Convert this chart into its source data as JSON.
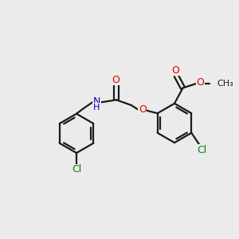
{
  "bg_color": "#ebebeb",
  "bond_color": "#1a1a1a",
  "O_color": "#e00000",
  "N_color": "#0000cc",
  "Cl_color": "#008000",
  "line_width": 1.6,
  "figsize": [
    3.0,
    3.0
  ],
  "dpi": 100,
  "xlim": [
    0,
    10
  ],
  "ylim": [
    0,
    10
  ]
}
